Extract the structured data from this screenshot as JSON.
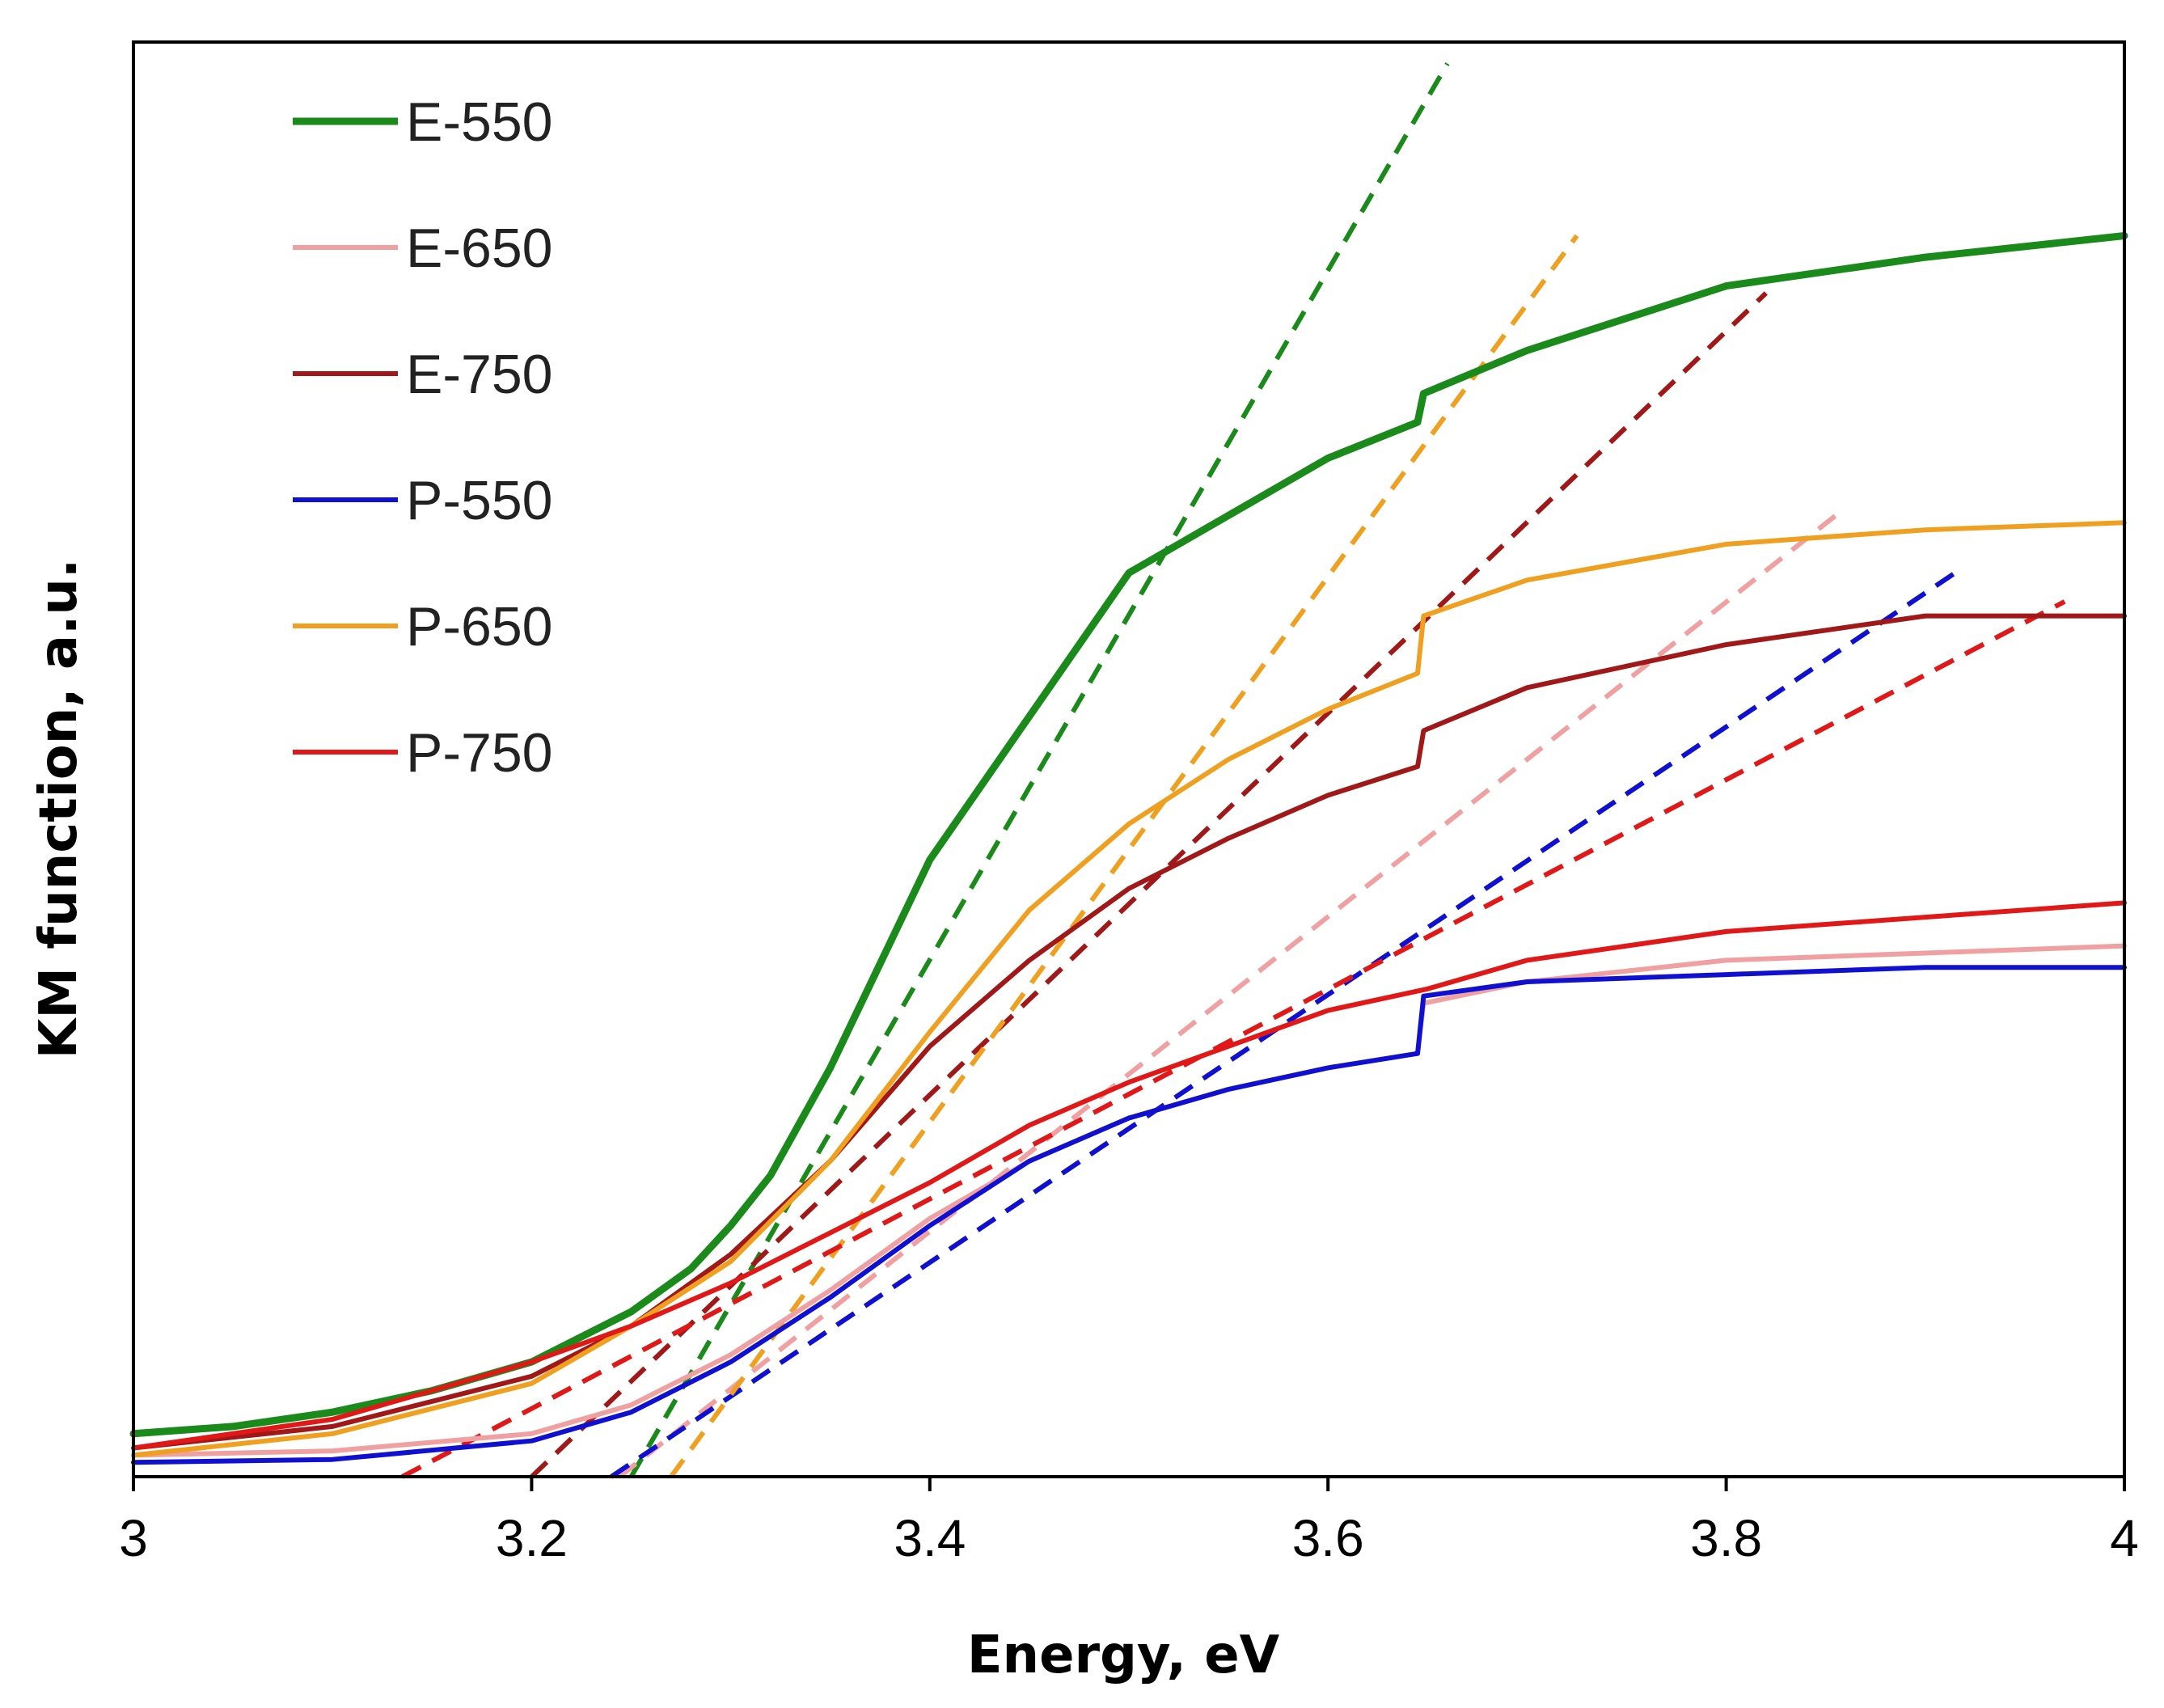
{
  "chart_data": {
    "type": "line",
    "title": "",
    "xlabel": "Energy, eV",
    "ylabel": "KM function, a.u.",
    "xlim": [
      3,
      4
    ],
    "ylim": [
      0,
      1
    ],
    "x_ticks": [
      "3",
      "3.2",
      "3.4",
      "3.6",
      "3.8",
      "4"
    ],
    "y_ticks_shown": false,
    "grid": false,
    "legend_position": "top-left",
    "series": [
      {
        "name": "E-550",
        "color": "#1a8a1a",
        "x": [
          3.0,
          3.05,
          3.1,
          3.15,
          3.2,
          3.25,
          3.28,
          3.3,
          3.32,
          3.35,
          3.4,
          3.45,
          3.5,
          3.55,
          3.6,
          3.645,
          3.648,
          3.7,
          3.8,
          3.9,
          4.0
        ],
        "y": [
          0.03,
          0.035,
          0.045,
          0.06,
          0.08,
          0.115,
          0.145,
          0.175,
          0.21,
          0.285,
          0.43,
          0.53,
          0.63,
          0.67,
          0.71,
          0.735,
          0.755,
          0.785,
          0.83,
          0.85,
          0.865
        ]
      },
      {
        "name": "E-650",
        "color": "#f0a0a0",
        "x": [
          3.0,
          3.1,
          3.2,
          3.25,
          3.3,
          3.35,
          3.4,
          3.45,
          3.5,
          3.55,
          3.6,
          3.645,
          3.648,
          3.7,
          3.8,
          3.9,
          4.0
        ],
        "y": [
          0.015,
          0.018,
          0.03,
          0.05,
          0.085,
          0.13,
          0.18,
          0.22,
          0.25,
          0.27,
          0.285,
          0.295,
          0.33,
          0.345,
          0.36,
          0.365,
          0.37
        ]
      },
      {
        "name": "E-750",
        "color": "#a01818",
        "x": [
          3.0,
          3.1,
          3.2,
          3.25,
          3.3,
          3.35,
          3.4,
          3.45,
          3.5,
          3.55,
          3.6,
          3.645,
          3.648,
          3.7,
          3.8,
          3.9,
          4.0
        ],
        "y": [
          0.02,
          0.035,
          0.07,
          0.105,
          0.155,
          0.22,
          0.3,
          0.36,
          0.41,
          0.445,
          0.475,
          0.495,
          0.52,
          0.55,
          0.58,
          0.6,
          0.6
        ]
      },
      {
        "name": "P-550",
        "color": "#1010d0",
        "x": [
          3.0,
          3.1,
          3.2,
          3.25,
          3.3,
          3.35,
          3.4,
          3.45,
          3.5,
          3.55,
          3.6,
          3.645,
          3.648,
          3.7,
          3.8,
          3.9,
          4.0
        ],
        "y": [
          0.01,
          0.012,
          0.025,
          0.045,
          0.08,
          0.125,
          0.175,
          0.22,
          0.25,
          0.27,
          0.285,
          0.295,
          0.335,
          0.345,
          0.35,
          0.355,
          0.355
        ]
      },
      {
        "name": "P-650",
        "color": "#f0a020",
        "x": [
          3.0,
          3.1,
          3.2,
          3.25,
          3.3,
          3.35,
          3.4,
          3.45,
          3.5,
          3.55,
          3.6,
          3.645,
          3.648,
          3.7,
          3.8,
          3.9,
          4.0
        ],
        "y": [
          0.015,
          0.03,
          0.065,
          0.105,
          0.15,
          0.22,
          0.31,
          0.395,
          0.455,
          0.5,
          0.535,
          0.56,
          0.6,
          0.625,
          0.65,
          0.66,
          0.665
        ]
      },
      {
        "name": "P-750",
        "color": "#e01818",
        "x": [
          3.0,
          3.1,
          3.2,
          3.25,
          3.3,
          3.35,
          3.4,
          3.45,
          3.5,
          3.55,
          3.6,
          3.65,
          3.7,
          3.8,
          3.9,
          4.0
        ],
        "y": [
          0.02,
          0.04,
          0.08,
          0.105,
          0.135,
          0.17,
          0.205,
          0.245,
          0.275,
          0.3,
          0.325,
          0.34,
          0.36,
          0.38,
          0.39,
          0.4
        ]
      }
    ],
    "fit_lines": [
      {
        "series": "E-550",
        "color": "#1a8a1a",
        "x": [
          3.25,
          3.66
        ],
        "y": [
          0.0,
          0.985
        ]
      },
      {
        "series": "E-650",
        "color": "#f0a0a0",
        "x": [
          3.235,
          3.855
        ],
        "y": [
          -0.01,
          0.67
        ]
      },
      {
        "series": "E-750",
        "color": "#a01818",
        "x": [
          3.2,
          3.82
        ],
        "y": [
          0.0,
          0.825
        ]
      },
      {
        "series": "P-550",
        "color": "#1010d0",
        "x": [
          3.24,
          3.915
        ],
        "y": [
          0.0,
          0.63
        ]
      },
      {
        "series": "P-650",
        "color": "#f0a020",
        "x": [
          3.27,
          3.725
        ],
        "y": [
          0.0,
          0.865
        ]
      },
      {
        "series": "P-750",
        "color": "#e01818",
        "x": [
          3.135,
          3.97
        ],
        "y": [
          0.0,
          0.61
        ]
      }
    ]
  }
}
